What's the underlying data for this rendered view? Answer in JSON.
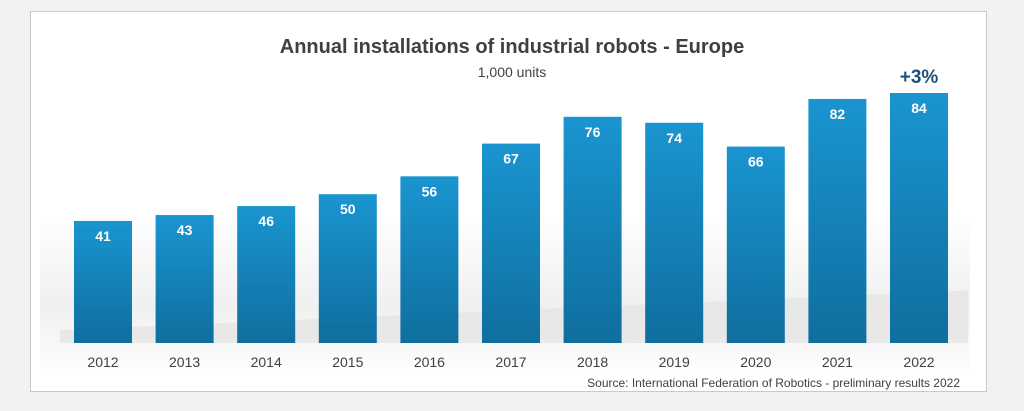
{
  "chart_data": {
    "type": "bar",
    "title": "Annual installations of industrial robots - Europe",
    "subtitle": "1,000 units",
    "categories": [
      "2012",
      "2013",
      "2014",
      "2015",
      "2016",
      "2017",
      "2018",
      "2019",
      "2020",
      "2021",
      "2022"
    ],
    "values": [
      41,
      43,
      46,
      50,
      56,
      67,
      76,
      74,
      66,
      82,
      84
    ],
    "annotation": {
      "category": "2022",
      "text": "+3%"
    },
    "ylim": [
      0,
      84
    ],
    "grid": false,
    "legend": "none",
    "source": "Source: International Federation of Robotics - preliminary results 2022"
  },
  "colors": {
    "bar_top": "#1a95d0",
    "bar_bottom": "#0f6e9e",
    "label": "#ffffff",
    "annotation": "#1f4e79",
    "text": "#404040"
  }
}
